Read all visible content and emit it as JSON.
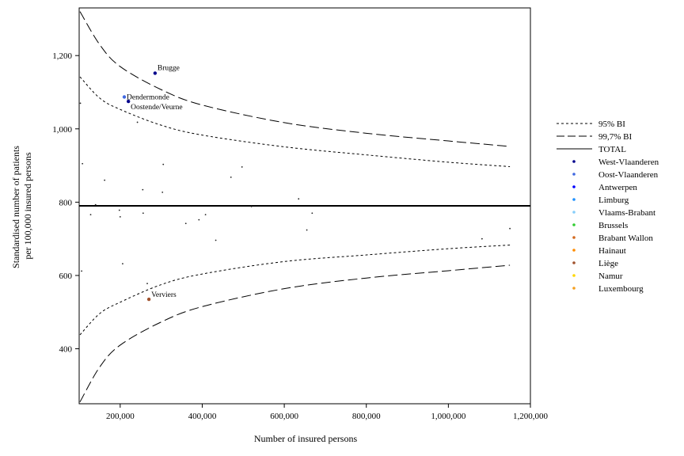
{
  "chart_data": {
    "type": "scatter",
    "xlabel": "Number of insured persons",
    "ylabel_lines": [
      "Standardised number of patients",
      "per 100,000 insured persons"
    ],
    "xlim": [
      100000,
      1200000
    ],
    "ylim": [
      250,
      1330
    ],
    "x_ticks": [
      200000,
      400000,
      600000,
      800000,
      1000000,
      1200000
    ],
    "x_tick_labels": [
      "200,000",
      "400,000",
      "600,000",
      "800,000",
      "1,000,000",
      "1,200,000"
    ],
    "y_ticks": [
      400,
      600,
      800,
      1000,
      1200
    ],
    "y_tick_labels": [
      "400",
      "600",
      "800",
      "1,000",
      "1,200"
    ],
    "total": 790,
    "colors": {
      "frame": "#000000",
      "West-Vlaanderen": "#00008b",
      "Oost-Vlaanderen": "#4169e1",
      "Antwerpen": "#0000ff",
      "Limburg": "#1e90ff",
      "Vlaams-Brabant": "#87cefa",
      "Brussels": "#32cd32",
      "Brabant Wallon": "#d2691e",
      "Hainaut": "#ff8c00",
      "Liège": "#a0522d",
      "Namur": "#ffd700",
      "Luxembourg": "#f4a020"
    },
    "legend": {
      "position": "right",
      "lines": [
        {
          "label": "95% BI",
          "style": "dotted"
        },
        {
          "label": "99,7% BI",
          "style": "dashed"
        },
        {
          "label": "TOTAL",
          "style": "solid"
        }
      ],
      "regions": [
        "West-Vlaanderen",
        "Oost-Vlaanderen",
        "Antwerpen",
        "Limburg",
        "Vlaams-Brabant",
        "Brussels",
        "Brabant Wallon",
        "Hainaut",
        "Liège",
        "Namur",
        "Luxembourg"
      ]
    },
    "labelled_points": [
      {
        "label": "Brugge",
        "x": 285000,
        "y": 1152,
        "region": "West-Vlaanderen"
      },
      {
        "label": "Dendermonde",
        "x": 210000,
        "y": 1087,
        "region": "Oost-Vlaanderen"
      },
      {
        "label": "Oostende/Veurne",
        "x": 220000,
        "y": 1075,
        "region": "West-Vlaanderen"
      },
      {
        "label": "Verviers",
        "x": 270000,
        "y": 535,
        "region": "Liège"
      }
    ],
    "points": [
      {
        "x": 103000,
        "y": 1070
      },
      {
        "x": 108000,
        "y": 905
      },
      {
        "x": 106000,
        "y": 612
      },
      {
        "x": 128000,
        "y": 766
      },
      {
        "x": 140000,
        "y": 793
      },
      {
        "x": 162000,
        "y": 860
      },
      {
        "x": 198000,
        "y": 778
      },
      {
        "x": 200000,
        "y": 760
      },
      {
        "x": 206000,
        "y": 632
      },
      {
        "x": 242000,
        "y": 1018
      },
      {
        "x": 255000,
        "y": 834
      },
      {
        "x": 256000,
        "y": 770
      },
      {
        "x": 266000,
        "y": 578
      },
      {
        "x": 303000,
        "y": 827
      },
      {
        "x": 305000,
        "y": 903
      },
      {
        "x": 360000,
        "y": 742
      },
      {
        "x": 392000,
        "y": 752
      },
      {
        "x": 408000,
        "y": 766
      },
      {
        "x": 433000,
        "y": 696
      },
      {
        "x": 470000,
        "y": 868
      },
      {
        "x": 497000,
        "y": 896
      },
      {
        "x": 520000,
        "y": 788
      },
      {
        "x": 635000,
        "y": 809
      },
      {
        "x": 655000,
        "y": 724
      },
      {
        "x": 668000,
        "y": 770
      },
      {
        "x": 1082000,
        "y": 700
      },
      {
        "x": 1150000,
        "y": 728
      }
    ],
    "ci_95_upper": [
      [
        102000,
        1142
      ],
      [
        150000,
        1084
      ],
      [
        200000,
        1053
      ],
      [
        300000,
        1010
      ],
      [
        400000,
        983
      ],
      [
        600000,
        951
      ],
      [
        800000,
        929
      ],
      [
        1000000,
        909
      ],
      [
        1150000,
        897
      ]
    ],
    "ci_95_lower": [
      [
        102000,
        438
      ],
      [
        150000,
        496
      ],
      [
        200000,
        527
      ],
      [
        300000,
        575
      ],
      [
        400000,
        604
      ],
      [
        600000,
        638
      ],
      [
        800000,
        656
      ],
      [
        1000000,
        673
      ],
      [
        1150000,
        683
      ]
    ],
    "ci_997_upper": [
      [
        102000,
        1320
      ],
      [
        150000,
        1230
      ],
      [
        200000,
        1170
      ],
      [
        300000,
        1107
      ],
      [
        400000,
        1065
      ],
      [
        600000,
        1017
      ],
      [
        800000,
        988
      ],
      [
        1000000,
        967
      ],
      [
        1150000,
        952
      ]
    ],
    "ci_997_lower": [
      [
        102000,
        255
      ],
      [
        150000,
        350
      ],
      [
        200000,
        410
      ],
      [
        300000,
        473
      ],
      [
        400000,
        515
      ],
      [
        600000,
        564
      ],
      [
        800000,
        593
      ],
      [
        1000000,
        613
      ],
      [
        1150000,
        628
      ]
    ]
  }
}
